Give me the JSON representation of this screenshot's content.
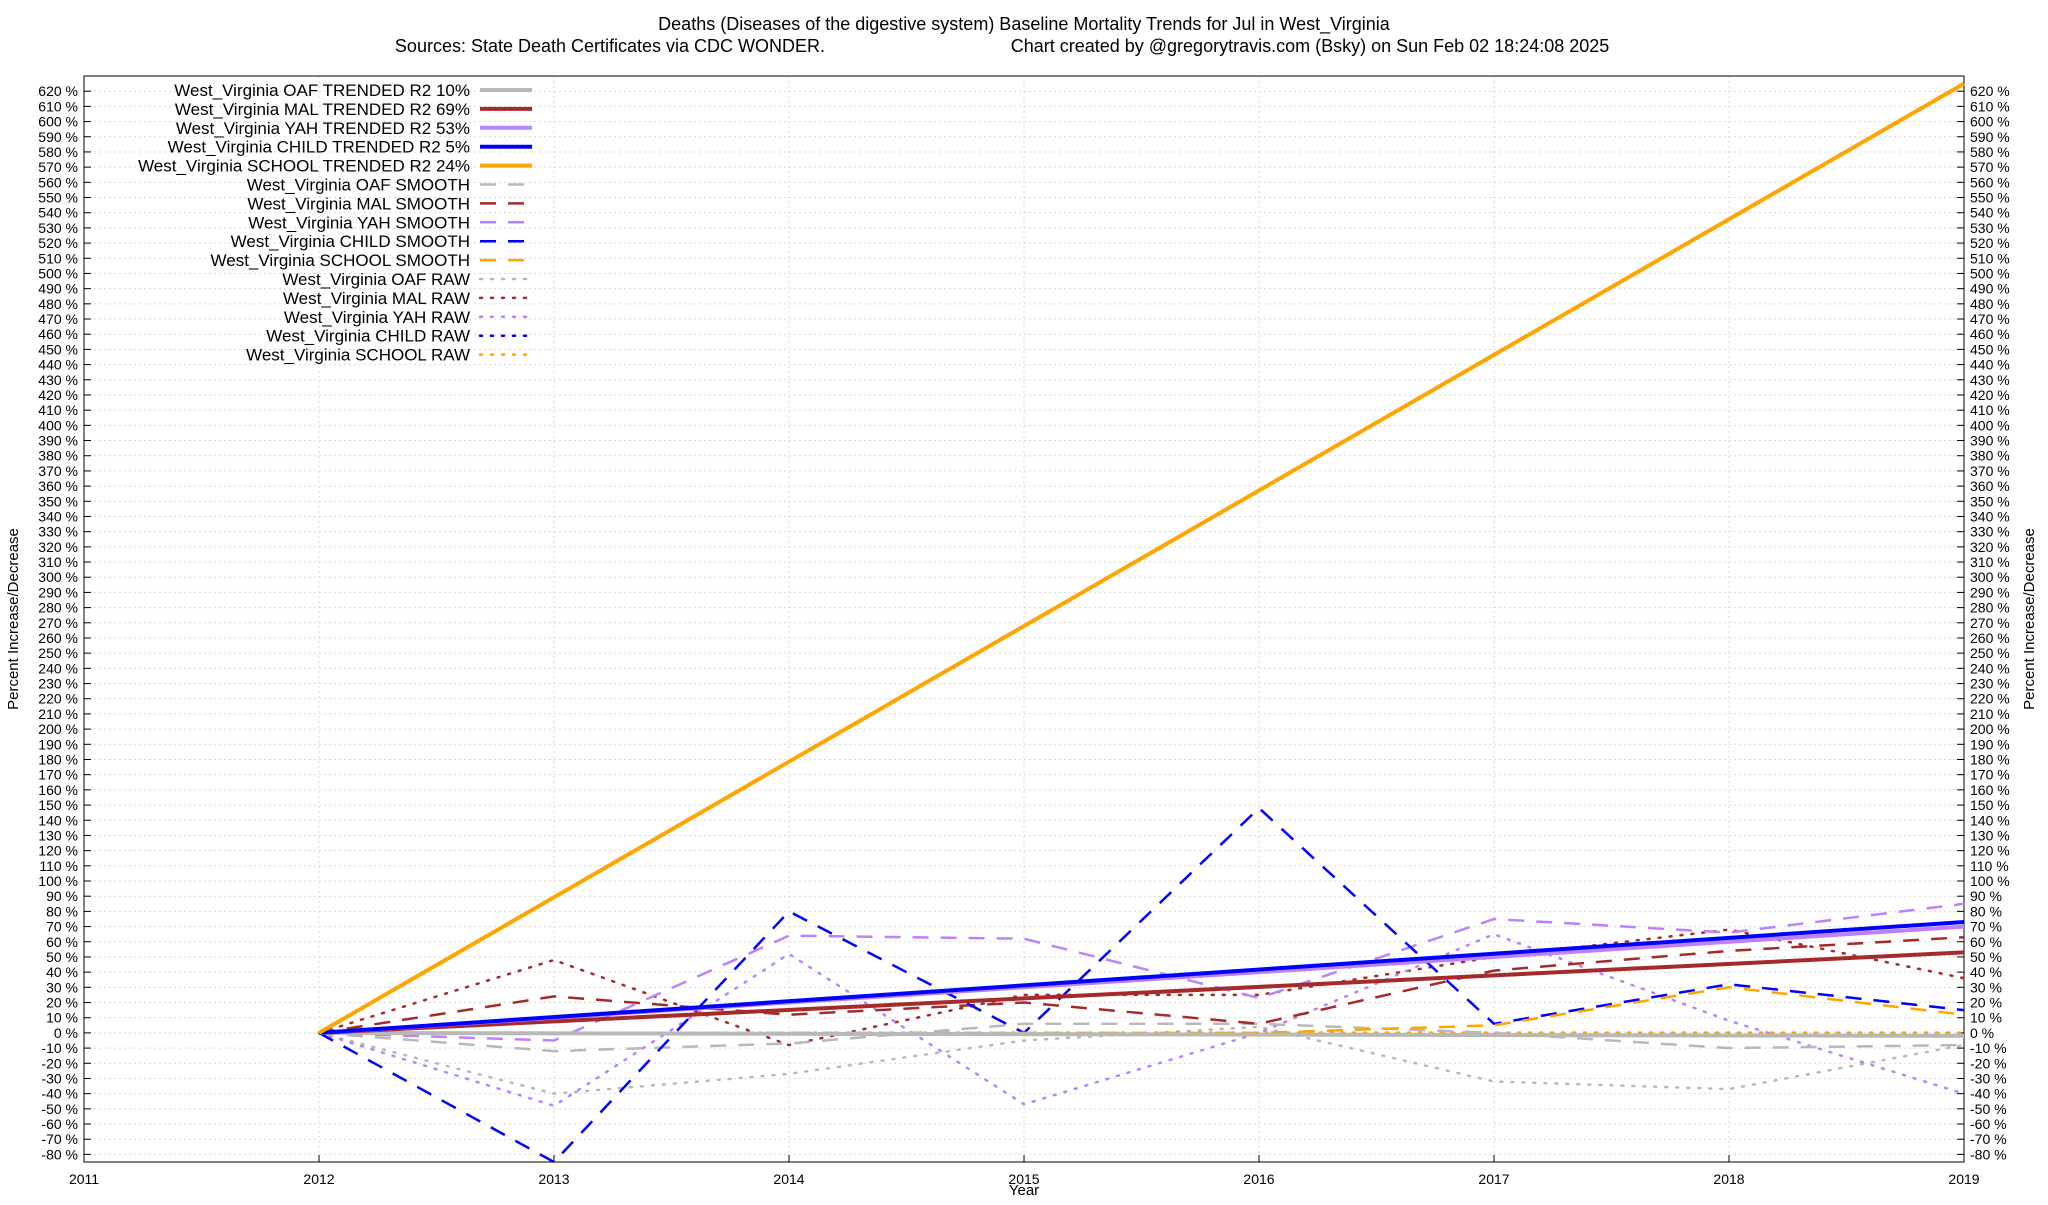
{
  "chart_data": {
    "type": "line",
    "title": "Deaths (Diseases of the digestive system)  Baseline Mortality Trends for Jul in West_Virginia",
    "subtitle_left": "Sources: State Death Certificates via CDC WONDER.",
    "subtitle_right": "Chart created by @gregorytravis.com (Bsky) on Sun Feb 02 18:24:08 2025",
    "xlabel": "Year",
    "ylabel_left": "Percent Increase/Decrease",
    "ylabel_right": "Percent Increase/Decrease",
    "xlim": [
      2011,
      2019
    ],
    "ylim": [
      -85,
      630
    ],
    "x_ticks": [
      2011,
      2012,
      2013,
      2014,
      2015,
      2016,
      2017,
      2018,
      2019
    ],
    "x_tick_labels": [
      "2011",
      "2012",
      "2013",
      "2014",
      "2015",
      "2016",
      "2017",
      "2018",
      "2019"
    ],
    "y_tick_step": 10,
    "y_tick_min": -80,
    "y_tick_max": 620,
    "y_tick_suffix": " %",
    "grid": true,
    "legend_position": "top-left",
    "series": [
      {
        "name": "West_Virginia OAF TRENDED R2  10%",
        "style": "trend",
        "color": "#b8b8b8",
        "x": [
          2012,
          2019
        ],
        "y": [
          0,
          -2
        ]
      },
      {
        "name": "West_Virginia MAL TRENDED R2  69%",
        "style": "trend",
        "color": "#a52a2a",
        "x": [
          2012,
          2019
        ],
        "y": [
          0,
          53
        ]
      },
      {
        "name": "West_Virginia YAH TRENDED R2  53%",
        "style": "trend",
        "color": "#bf80ff",
        "x": [
          2012,
          2019
        ],
        "y": [
          0,
          70
        ]
      },
      {
        "name": "West_Virginia CHILD TRENDED R2   5%",
        "style": "trend",
        "color": "#0000ff",
        "x": [
          2012,
          2019
        ],
        "y": [
          0,
          73
        ]
      },
      {
        "name": "West_Virginia SCHOOL TRENDED R2  24%",
        "style": "trend",
        "color": "#ffa500",
        "x": [
          2012,
          2019
        ],
        "y": [
          0,
          625
        ]
      },
      {
        "name": "West_Virginia OAF SMOOTH",
        "style": "smooth",
        "color": "#b8b8b8",
        "x": [
          2012,
          2013,
          2014,
          2015,
          2016,
          2017,
          2018,
          2019
        ],
        "y": [
          0,
          -12,
          -7,
          6,
          6,
          0,
          -10,
          -8
        ]
      },
      {
        "name": "West_Virginia MAL SMOOTH",
        "style": "smooth",
        "color": "#a52a2a",
        "x": [
          2012,
          2013,
          2014,
          2015,
          2016,
          2017,
          2018,
          2019
        ],
        "y": [
          0,
          24,
          12,
          20,
          6,
          41,
          54,
          63
        ]
      },
      {
        "name": "West_Virginia YAH SMOOTH",
        "style": "smooth",
        "color": "#bf80ff",
        "x": [
          2012,
          2013,
          2014,
          2015,
          2016,
          2017,
          2018,
          2019
        ],
        "y": [
          0,
          -5,
          64,
          62,
          23,
          75,
          66,
          85
        ]
      },
      {
        "name": "West_Virginia CHILD SMOOTH",
        "style": "smooth",
        "color": "#0000ff",
        "x": [
          2012,
          2013,
          2014,
          2015,
          2016,
          2017,
          2018,
          2019
        ],
        "y": [
          0,
          -85,
          80,
          0,
          148,
          6,
          32,
          15
        ]
      },
      {
        "name": "West_Virginia SCHOOL SMOOTH",
        "style": "smooth",
        "color": "#ffa500",
        "x": [
          2012,
          2013,
          2014,
          2015,
          2016,
          2017,
          2018,
          2019
        ],
        "y": [
          0,
          0,
          0,
          0,
          0,
          5,
          30,
          12
        ]
      },
      {
        "name": "West_Virginia OAF RAW",
        "style": "raw",
        "color": "#b8b8b8",
        "x": [
          2012,
          2013,
          2014,
          2015,
          2016,
          2017,
          2018,
          2019
        ],
        "y": [
          0,
          -40,
          -27,
          -5,
          4,
          -32,
          -37,
          -8
        ]
      },
      {
        "name": "West_Virginia MAL RAW",
        "style": "raw",
        "color": "#a52a2a",
        "x": [
          2012,
          2013,
          2014,
          2015,
          2016,
          2017,
          2018,
          2019
        ],
        "y": [
          0,
          48,
          -8,
          25,
          25,
          50,
          68,
          36
        ]
      },
      {
        "name": "West_Virginia YAH RAW",
        "style": "raw",
        "color": "#bf80ff",
        "x": [
          2012,
          2013,
          2014,
          2015,
          2016,
          2017,
          2018,
          2019
        ],
        "y": [
          0,
          -48,
          52,
          -47,
          0,
          65,
          8,
          -40
        ]
      },
      {
        "name": "West_Virginia CHILD RAW",
        "style": "raw",
        "color": "#0000ff",
        "x": [
          2012,
          2013,
          2014,
          2015,
          2016,
          2017,
          2018,
          2019
        ],
        "y": [
          0,
          0,
          0,
          0,
          0,
          0,
          0,
          0
        ]
      },
      {
        "name": "West_Virginia SCHOOL RAW",
        "style": "raw",
        "color": "#ffa500",
        "x": [
          2012,
          2013,
          2014,
          2015,
          2016,
          2017,
          2018,
          2019
        ],
        "y": [
          0,
          0,
          0,
          0,
          0,
          0,
          0,
          0
        ]
      }
    ]
  }
}
